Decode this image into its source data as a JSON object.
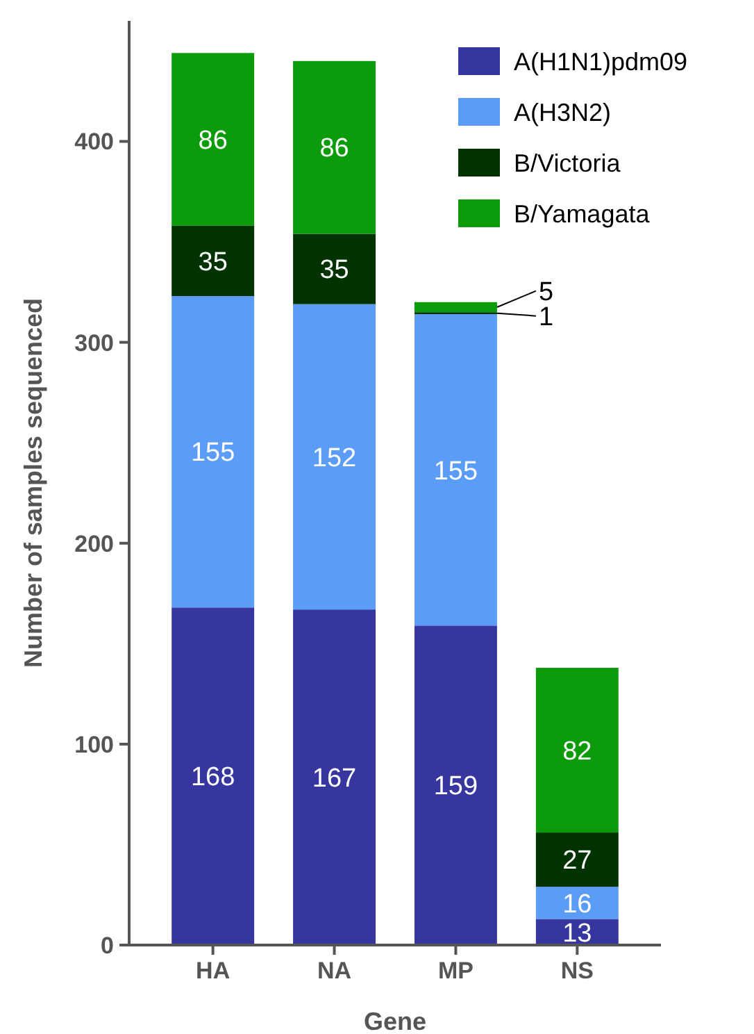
{
  "chart_data": {
    "type": "bar",
    "stacked": true,
    "xlabel": "Gene",
    "ylabel": "Number of samples sequenced",
    "categories": [
      "HA",
      "NA",
      "MP",
      "NS"
    ],
    "series": [
      {
        "name": "A(H1N1)pdm09",
        "color": "#37359e",
        "values": [
          168,
          167,
          159,
          13
        ]
      },
      {
        "name": "A(H3N2)",
        "color": "#5b9cf6",
        "values": [
          155,
          152,
          155,
          16
        ]
      },
      {
        "name": "B/Victoria",
        "color": "#003300",
        "values": [
          35,
          35,
          1,
          27
        ]
      },
      {
        "name": "B/Yamagata",
        "color": "#0b9b0b",
        "values": [
          86,
          86,
          5,
          82
        ]
      }
    ],
    "ylim": [
      0,
      460
    ],
    "yticks": [
      0,
      100,
      200,
      300,
      400
    ],
    "data_labels": true,
    "legend": "top right",
    "grid": false
  }
}
